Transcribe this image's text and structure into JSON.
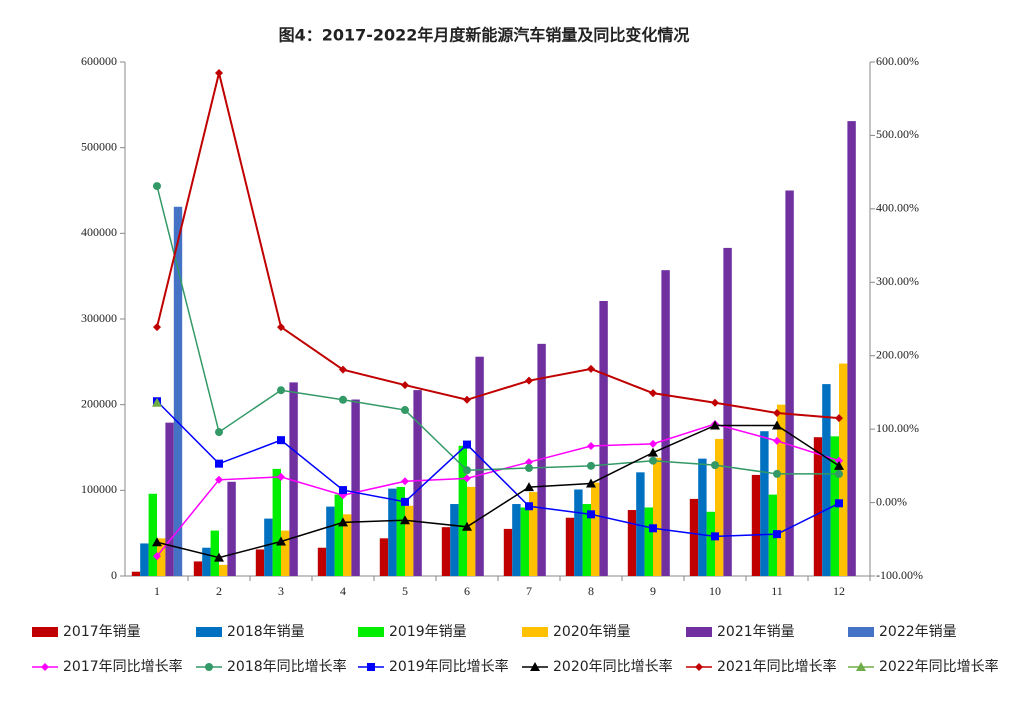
{
  "chart_data": {
    "type": "bar",
    "title": "图4：2017-2022年月度新能源汽车销量及同比变化情况",
    "categories": [
      "1",
      "2",
      "3",
      "4",
      "5",
      "6",
      "7",
      "8",
      "9",
      "10",
      "11",
      "12"
    ],
    "ylim": [
      0,
      600000
    ],
    "yticks": [
      0,
      100000,
      200000,
      300000,
      400000,
      500000,
      600000
    ],
    "y2lim": [
      -100,
      600
    ],
    "y2ticks": [
      {
        "value": -100,
        "label": "-100.00%"
      },
      {
        "value": 0,
        "label": "0.00%"
      },
      {
        "value": 100,
        "label": "100.00%"
      },
      {
        "value": 200,
        "label": "200.00%"
      },
      {
        "value": 300,
        "label": "300.00%"
      },
      {
        "value": 400,
        "label": "400.00%"
      },
      {
        "value": 500,
        "label": "500.00%"
      },
      {
        "value": 600,
        "label": "600.00%"
      }
    ],
    "series": [
      {
        "name": "2017年销量",
        "color": "#c00000",
        "values": [
          5000,
          17000,
          31000,
          33000,
          44000,
          57000,
          55000,
          68000,
          77000,
          90000,
          118000,
          162000
        ]
      },
      {
        "name": "2018年销量",
        "color": "#0070c0",
        "values": [
          38000,
          33000,
          67000,
          81000,
          102000,
          84000,
          84000,
          101000,
          121000,
          137000,
          169000,
          224000
        ]
      },
      {
        "name": "2019年销量",
        "color": "#00ee00",
        "values": [
          96000,
          53000,
          125000,
          95000,
          104000,
          152000,
          80000,
          84000,
          80000,
          75000,
          95000,
          163000
        ]
      },
      {
        "name": "2020年销量",
        "color": "#ffc000",
        "values": [
          44000,
          13000,
          53000,
          72000,
          82000,
          104000,
          98000,
          109000,
          138000,
          160000,
          200000,
          248000
        ]
      },
      {
        "name": "2021年销量",
        "color": "#7030a0",
        "values": [
          179000,
          110000,
          226000,
          206000,
          217000,
          256000,
          271000,
          321000,
          357000,
          383000,
          450000,
          531000
        ]
      },
      {
        "name": "2022年销量",
        "color": "#4472c4",
        "values": [
          431000,
          null,
          null,
          null,
          null,
          null,
          null,
          null,
          null,
          null,
          null,
          null
        ]
      },
      {
        "name": "2017年同比增长率",
        "type": "line",
        "axis": "y2",
        "marker": "diamond",
        "color": "#ff00ff",
        "values": [
          -73,
          31,
          35,
          10,
          29,
          33,
          55,
          77,
          80,
          107,
          84,
          57
        ]
      },
      {
        "name": "2018年同比增长率",
        "type": "line",
        "axis": "y2",
        "marker": "circle",
        "color": "#339966",
        "values": [
          431,
          96,
          153,
          140,
          126,
          44,
          47,
          50,
          57,
          51,
          39,
          39
        ]
      },
      {
        "name": "2019年同比增长率",
        "type": "line",
        "axis": "y2",
        "marker": "square",
        "color": "#0000ff",
        "values": [
          138,
          53,
          85,
          17,
          1,
          79,
          -5,
          -16,
          -35,
          -46,
          -43,
          -1
        ]
      },
      {
        "name": "2020年同比增长率",
        "type": "line",
        "axis": "y2",
        "marker": "triangle",
        "color": "#000000",
        "values": [
          -54,
          -75,
          -53,
          -27,
          -24,
          -33,
          21,
          26,
          68,
          105,
          105,
          50
        ]
      },
      {
        "name": "2021年同比增长率",
        "type": "line",
        "axis": "y2",
        "marker": "diamond",
        "color": "#c00000",
        "values": [
          239,
          585,
          239,
          181,
          160,
          140,
          166,
          182,
          149,
          136,
          122,
          115
        ]
      },
      {
        "name": "2022年同比增长率",
        "type": "line",
        "axis": "y2",
        "marker": "triangle",
        "color": "#70ad47",
        "values": [
          136,
          null,
          null,
          null,
          null,
          null,
          null,
          null,
          null,
          null,
          null,
          null
        ]
      }
    ]
  }
}
